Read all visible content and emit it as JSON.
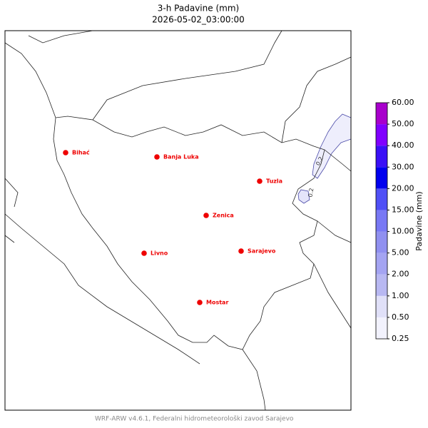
{
  "header": {
    "title": "3-h Padavine (mm)",
    "subtitle": "2026-05-02_03:00:00"
  },
  "map": {
    "cities": [
      "Bihać",
      "Banja Luka",
      "Tuzla",
      "Zenica",
      "Livno",
      "Sarajevo",
      "Mostar"
    ],
    "contour_labels": [
      "0.2",
      "0.2"
    ]
  },
  "colorbar": {
    "label": "Padavine (mm)",
    "ticks": [
      {
        "value": 0.25,
        "label": "0.25"
      },
      {
        "value": 0.5,
        "label": "0.50"
      },
      {
        "value": 1,
        "label": "1.00"
      },
      {
        "value": 2,
        "label": "2.00"
      },
      {
        "value": 5,
        "label": "5.00"
      },
      {
        "value": 10,
        "label": "10.00"
      },
      {
        "value": 15,
        "label": "15.00"
      },
      {
        "value": 20,
        "label": "20.00"
      },
      {
        "value": 30,
        "label": "30.00"
      },
      {
        "value": 40,
        "label": "40.00"
      },
      {
        "value": 50,
        "label": "50.00"
      },
      {
        "value": 60,
        "label": "60.00"
      }
    ],
    "colors": [
      "#f2f2fd",
      "#e0e0f8",
      "#b8b8f2",
      "#a4a4f2",
      "#9090f0",
      "#7878f4",
      "#5050f6",
      "#0000ee",
      "#3a10f6",
      "#8000ff",
      "#a800cc"
    ]
  },
  "footer": {
    "credit": "WRF-ARW v4.6.1, Federalni hidrometeorološki zavod Sarajevo"
  }
}
